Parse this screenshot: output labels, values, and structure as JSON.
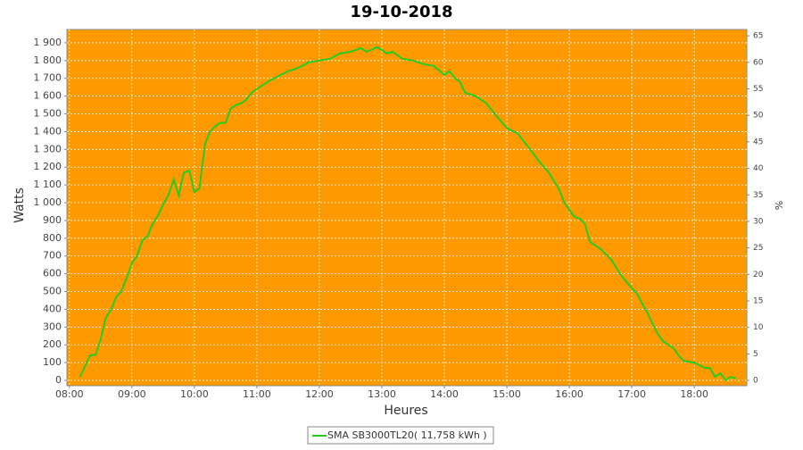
{
  "chart_data": {
    "type": "line",
    "title": "19-10-2018",
    "x_label": "Heures",
    "y_label": "Watts",
    "y2_label": "%",
    "background": "#ff9900",
    "grid": true,
    "xlim": [
      7.96,
      18.84
    ],
    "xticks": [
      {
        "value": 8,
        "label": "08:00"
      },
      {
        "value": 9,
        "label": "09:00"
      },
      {
        "value": 10,
        "label": "10:00"
      },
      {
        "value": 11,
        "label": "11:00"
      },
      {
        "value": 12,
        "label": "12:00"
      },
      {
        "value": 13,
        "label": "13:00"
      },
      {
        "value": 14,
        "label": "14:00"
      },
      {
        "value": 15,
        "label": "15:00"
      },
      {
        "value": 16,
        "label": "16:00"
      },
      {
        "value": 17,
        "label": "17:00"
      },
      {
        "value": 18,
        "label": "18:00"
      }
    ],
    "ylim": [
      -30,
      1975
    ],
    "yticks": [
      0,
      100,
      200,
      300,
      400,
      500,
      600,
      700,
      800,
      900,
      {
        "value": 1000,
        "label": "1 000"
      },
      {
        "value": 1100,
        "label": "1 100"
      },
      {
        "value": 1200,
        "label": "1 200"
      },
      {
        "value": 1300,
        "label": "1 300"
      },
      {
        "value": 1400,
        "label": "1 400"
      },
      {
        "value": 1500,
        "label": "1 500"
      },
      {
        "value": 1600,
        "label": "1 600"
      },
      {
        "value": 1700,
        "label": "1 700"
      },
      {
        "value": 1800,
        "label": "1 800"
      },
      {
        "value": 1900,
        "label": "1 900"
      }
    ],
    "y2lim": [
      -1,
      66.2
    ],
    "y2ticks": [
      0,
      5,
      10,
      15,
      20,
      25,
      30,
      35,
      40,
      45,
      50,
      55,
      60,
      65
    ],
    "x": [
      8.17,
      8.25,
      8.33,
      8.42,
      8.5,
      8.58,
      8.67,
      8.75,
      8.83,
      8.92,
      9,
      9.08,
      9.17,
      9.25,
      9.33,
      9.42,
      9.5,
      9.58,
      9.67,
      9.75,
      9.83,
      9.92,
      10,
      10.08,
      10.17,
      10.25,
      10.33,
      10.42,
      10.5,
      10.58,
      10.67,
      10.75,
      10.83,
      10.92,
      11,
      11.17,
      11.33,
      11.5,
      11.67,
      11.83,
      12,
      12.17,
      12.33,
      12.5,
      12.67,
      12.75,
      12.83,
      12.92,
      13,
      13.08,
      13.17,
      13.33,
      13.5,
      13.67,
      13.83,
      14,
      14.08,
      14.17,
      14.25,
      14.33,
      14.5,
      14.67,
      14.83,
      15,
      15.17,
      15.33,
      15.5,
      15.67,
      15.83,
      15.92,
      16,
      16.08,
      16.17,
      16.25,
      16.33,
      16.5,
      16.67,
      16.83,
      17,
      17.08,
      17.17,
      17.25,
      17.33,
      17.42,
      17.5,
      17.67,
      17.75,
      17.83,
      18,
      18.17,
      18.25,
      18.33,
      18.42,
      18.5,
      18.58,
      18.67
    ],
    "series": [
      {
        "name": "SMA SB3000TL20( 11,758 kWh )",
        "color": "#22cc22",
        "values": [
          20,
          80,
          140,
          145,
          230,
          350,
          400,
          470,
          500,
          580,
          660,
          700,
          790,
          810,
          880,
          930,
          990,
          1040,
          1130,
          1040,
          1170,
          1180,
          1060,
          1080,
          1330,
          1400,
          1430,
          1450,
          1450,
          1530,
          1550,
          1560,
          1580,
          1620,
          1640,
          1680,
          1710,
          1740,
          1760,
          1790,
          1800,
          1810,
          1840,
          1850,
          1870,
          1850,
          1860,
          1875,
          1860,
          1840,
          1850,
          1810,
          1800,
          1780,
          1770,
          1720,
          1740,
          1700,
          1680,
          1620,
          1600,
          1560,
          1490,
          1420,
          1390,
          1320,
          1240,
          1170,
          1080,
          1000,
          960,
          920,
          910,
          880,
          780,
          740,
          680,
          590,
          520,
          490,
          430,
          380,
          320,
          260,
          220,
          180,
          140,
          110,
          100,
          70,
          70,
          20,
          40,
          0,
          20,
          10
        ]
      }
    ]
  }
}
